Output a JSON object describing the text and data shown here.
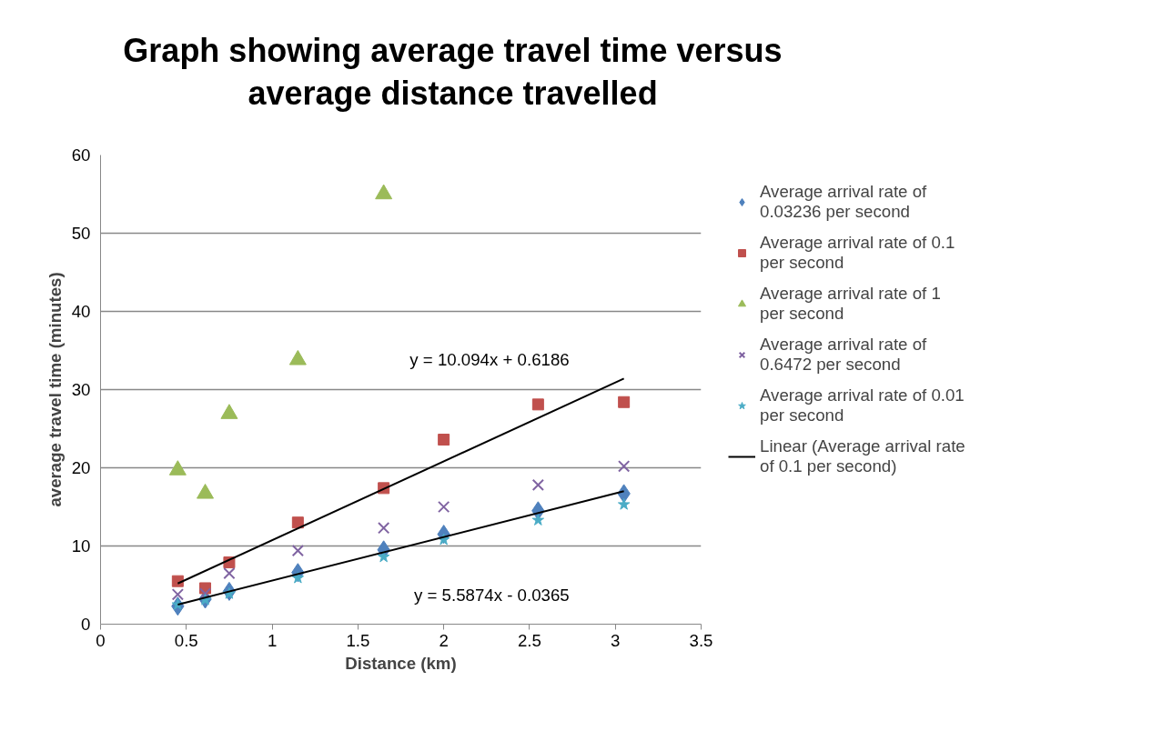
{
  "chart_data": {
    "type": "scatter",
    "title": "Graph showing average travel time versus average distance travelled",
    "xlabel": "Distance (km)",
    "ylabel": "average travel time (minutes)",
    "x": [
      0.45,
      0.61,
      0.75,
      1.15,
      1.65,
      2.0,
      2.55,
      3.05
    ],
    "series": [
      {
        "name": "Average arrival rate of 0.03236 per second",
        "color": "#4f81bd",
        "marker": "diamond",
        "values": [
          2.3,
          3.2,
          4.2,
          6.6,
          9.5,
          11.5,
          14.5,
          16.7
        ]
      },
      {
        "name": "Average arrival rate of 0.1 per second",
        "color": "#c0504d",
        "marker": "square",
        "values": [
          5.5,
          4.6,
          7.9,
          13.0,
          17.4,
          23.6,
          28.1,
          28.4
        ]
      },
      {
        "name": "Average arrival rate of 1 per second",
        "color": "#9bbb59",
        "marker": "triangle",
        "x": [
          0.45,
          0.61,
          0.75,
          1.15,
          1.65
        ],
        "values": [
          19.7,
          16.7,
          26.9,
          33.8,
          55.0
        ]
      },
      {
        "name": "Average arrival rate of 0.6472 per second",
        "color": "#8064a2",
        "marker": "cross",
        "values": [
          3.8,
          3.9,
          6.5,
          9.4,
          12.3,
          15.0,
          17.8,
          20.2
        ]
      },
      {
        "name": "Average arrival rate of 0.01 per second",
        "color": "#4bacc6",
        "marker": "star",
        "values": [
          2.5,
          3.1,
          3.9,
          5.9,
          8.6,
          10.8,
          13.3,
          15.3
        ]
      },
      {
        "name": "Linear (Average arrival rate of 0.1 per second)",
        "type": "line",
        "color": "#000000",
        "marker": "none",
        "x": [
          0.45,
          3.05
        ],
        "values": [
          5.2,
          31.4
        ]
      },
      {
        "type": "line",
        "color": "#000000",
        "marker": "none",
        "x": [
          0.45,
          3.05
        ],
        "values": [
          2.5,
          17.0
        ]
      }
    ],
    "annotations": [
      "y = 10.094x + 0.6186",
      "y = 5.5874x - 0.0365"
    ],
    "xlim": [
      0,
      3.5
    ],
    "xticks": [
      0,
      0.5,
      1,
      1.5,
      2,
      2.5,
      3,
      3.5
    ],
    "ylim": [
      0,
      60
    ],
    "yticks": [
      0,
      10,
      20,
      30,
      40,
      50,
      60
    ],
    "grid": "y",
    "legend": "right"
  }
}
